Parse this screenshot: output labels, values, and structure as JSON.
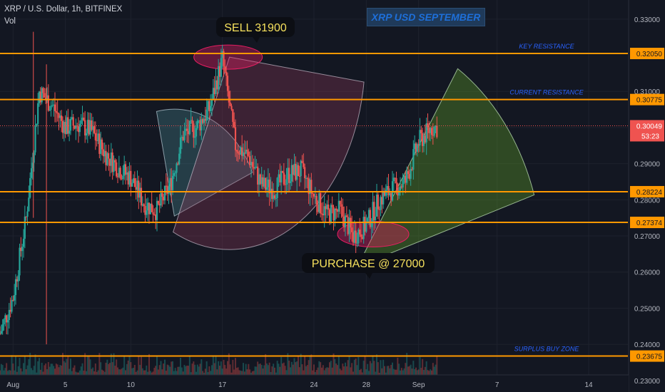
{
  "header": {
    "symbol": "XRP / U.S. Dollar, 1h, BITFINEX",
    "indicator": "Vol",
    "title": "XRP USD SEPTEMBER"
  },
  "price_axis": {
    "ticks": [
      "0.33000",
      "0.31000",
      "0.30000",
      "0.29000",
      "0.28000",
      "0.27000",
      "0.26000",
      "0.25000",
      "0.24000",
      "0.23000"
    ],
    "current_price": "0.30049",
    "countdown": "53:23"
  },
  "time_axis": {
    "ticks": [
      "Aug",
      "5",
      "10",
      "17",
      "24",
      "28",
      "Sep",
      "7",
      "14"
    ]
  },
  "chart_data": {
    "type": "candlestick",
    "x_range": [
      "Jul 31",
      "Sep 17"
    ],
    "ylim": [
      0.2268,
      0.3353
    ],
    "horizontal_lines": [
      {
        "price": 0.3205,
        "label": "0.32050",
        "annotation": "KEY RESISTANCE"
      },
      {
        "price": 0.30775,
        "label": "0.30775",
        "annotation": "CURRENT RESISTANCE"
      },
      {
        "price": 0.28224,
        "label": "0.28224",
        "annotation": ""
      },
      {
        "price": 0.27374,
        "label": "0.27374",
        "annotation": ""
      },
      {
        "price": 0.23675,
        "label": "0.23675",
        "annotation": "SURPLUS BUY ZONE"
      }
    ],
    "callouts": [
      {
        "text": "SELL 31900",
        "price": 0.319
      },
      {
        "text": "PURCHASE @ 27000",
        "price": 0.27
      }
    ],
    "price_path": [
      [
        "Jul 31",
        0.243
      ],
      [
        "Aug 1",
        0.253
      ],
      [
        "Aug 2",
        0.275
      ],
      [
        "Aug 3",
        0.31
      ],
      [
        "Aug 4",
        0.306
      ],
      [
        "Aug 5",
        0.3
      ],
      [
        "Aug 6",
        0.301
      ],
      [
        "Aug 7",
        0.299
      ],
      [
        "Aug 8",
        0.293
      ],
      [
        "Aug 9",
        0.289
      ],
      [
        "Aug 10",
        0.286
      ],
      [
        "Aug 11",
        0.279
      ],
      [
        "Aug 12",
        0.277
      ],
      [
        "Aug 13",
        0.284
      ],
      [
        "Aug 14",
        0.298
      ],
      [
        "Aug 15",
        0.3
      ],
      [
        "Aug 16",
        0.305
      ],
      [
        "Aug 17",
        0.319
      ],
      [
        "Aug 18",
        0.295
      ],
      [
        "Aug 19",
        0.292
      ],
      [
        "Aug 20",
        0.284
      ],
      [
        "Aug 21",
        0.283
      ],
      [
        "Aug 22",
        0.287
      ],
      [
        "Aug 23",
        0.288
      ],
      [
        "Aug 24",
        0.281
      ],
      [
        "Aug 25",
        0.276
      ],
      [
        "Aug 26",
        0.277
      ],
      [
        "Aug 27",
        0.27
      ],
      [
        "Aug 28",
        0.273
      ],
      [
        "Aug 29",
        0.28
      ],
      [
        "Aug 30",
        0.283
      ],
      [
        "Aug 31",
        0.285
      ],
      [
        "Sep 1",
        0.296
      ],
      [
        "Sep 2",
        0.3
      ]
    ],
    "colors": {
      "up": "#26a69a",
      "down": "#ef5350",
      "level": "#ff9800",
      "annotation": "#2962ff",
      "callout": "#f6e15d"
    }
  }
}
